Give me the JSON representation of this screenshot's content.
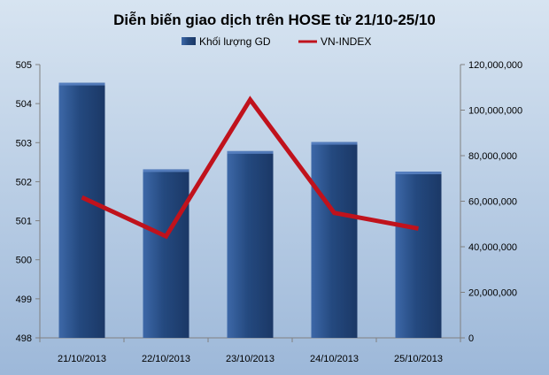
{
  "chart_data": {
    "type": "bar",
    "title": "Diễn biến giao dịch trên HOSE từ 21/10-25/10",
    "categories": [
      "21/10/2013",
      "22/10/2013",
      "23/10/2013",
      "24/10/2013",
      "25/10/2013"
    ],
    "series": [
      {
        "name": "Khối lượng GD",
        "type": "bar",
        "axis": "right",
        "color": "#24497F",
        "values": [
          112000000,
          74000000,
          82000000,
          86000000,
          73000000
        ]
      },
      {
        "name": "VN-INDEX",
        "type": "line",
        "axis": "left",
        "color": "#C0121C",
        "values": [
          501.6,
          500.6,
          504.1,
          501.2,
          500.8
        ]
      }
    ],
    "y_left": {
      "min": 498,
      "max": 505,
      "ticks": [
        "498",
        "499",
        "500",
        "501",
        "502",
        "503",
        "504",
        "505"
      ]
    },
    "y_right": {
      "min": 0,
      "max": 120000000,
      "ticks": [
        "0",
        "20,000,000",
        "40,000,000",
        "60,000,000",
        "80,000,000",
        "100,000,000",
        "120,000,000"
      ]
    },
    "legend_position": "top",
    "grid": false
  },
  "colors": {
    "background_top": "#D7E4F1",
    "background_bottom": "#9DB8D9",
    "bar": "#24497F",
    "line": "#C0121C"
  }
}
